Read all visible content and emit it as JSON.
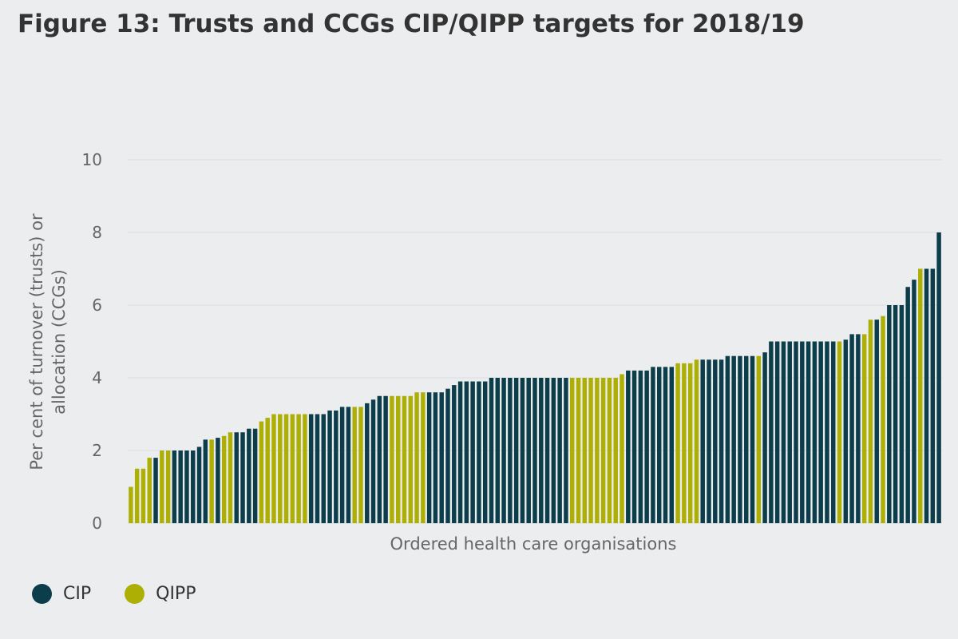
{
  "title": "Figure 13: Trusts and CCGs CIP/QIPP targets for 2018/19",
  "colors": {
    "CIP": "#0c3d4a",
    "QIPP": "#adaf05",
    "grid": "#dcdde0",
    "axis_text": "#666666",
    "background": "#ecedef"
  },
  "legend": [
    {
      "name": "CIP",
      "label": "CIP",
      "color": "#0c3d4a"
    },
    {
      "name": "QIPP",
      "label": "QIPP",
      "color": "#adaf05"
    }
  ],
  "chart_data": {
    "type": "bar",
    "title": "Figure 13: Trusts and CCGs CIP/QIPP targets for 2018/19",
    "xlabel": "Ordered health care organisations",
    "ylabel": "Per cent of turnover (trusts) or allocation (CCGs)",
    "ylim": [
      0,
      10
    ],
    "yticks": [
      0,
      2,
      4,
      6,
      8,
      10
    ],
    "grid": true,
    "legend_position": "bottom-left",
    "series_names": [
      "CIP",
      "QIPP"
    ],
    "bars": [
      [
        "QIPP",
        1.0
      ],
      [
        "QIPP",
        1.5
      ],
      [
        "QIPP",
        1.5
      ],
      [
        "QIPP",
        1.8
      ],
      [
        "CIP",
        1.8
      ],
      [
        "QIPP",
        2.0
      ],
      [
        "QIPP",
        2.0
      ],
      [
        "CIP",
        2.0
      ],
      [
        "CIP",
        2.0
      ],
      [
        "CIP",
        2.0
      ],
      [
        "CIP",
        2.0
      ],
      [
        "CIP",
        2.1
      ],
      [
        "CIP",
        2.3
      ],
      [
        "QIPP",
        2.3
      ],
      [
        "CIP",
        2.35
      ],
      [
        "QIPP",
        2.4
      ],
      [
        "QIPP",
        2.5
      ],
      [
        "CIP",
        2.5
      ],
      [
        "CIP",
        2.5
      ],
      [
        "CIP",
        2.6
      ],
      [
        "CIP",
        2.6
      ],
      [
        "QIPP",
        2.8
      ],
      [
        "QIPP",
        2.9
      ],
      [
        "QIPP",
        3.0
      ],
      [
        "QIPP",
        3.0
      ],
      [
        "QIPP",
        3.0
      ],
      [
        "QIPP",
        3.0
      ],
      [
        "QIPP",
        3.0
      ],
      [
        "QIPP",
        3.0
      ],
      [
        "CIP",
        3.0
      ],
      [
        "CIP",
        3.0
      ],
      [
        "CIP",
        3.0
      ],
      [
        "CIP",
        3.1
      ],
      [
        "CIP",
        3.1
      ],
      [
        "CIP",
        3.2
      ],
      [
        "CIP",
        3.2
      ],
      [
        "QIPP",
        3.2
      ],
      [
        "QIPP",
        3.2
      ],
      [
        "CIP",
        3.3
      ],
      [
        "CIP",
        3.4
      ],
      [
        "CIP",
        3.5
      ],
      [
        "CIP",
        3.5
      ],
      [
        "QIPP",
        3.5
      ],
      [
        "QIPP",
        3.5
      ],
      [
        "QIPP",
        3.5
      ],
      [
        "QIPP",
        3.5
      ],
      [
        "QIPP",
        3.6
      ],
      [
        "QIPP",
        3.6
      ],
      [
        "CIP",
        3.6
      ],
      [
        "CIP",
        3.6
      ],
      [
        "CIP",
        3.6
      ],
      [
        "CIP",
        3.7
      ],
      [
        "CIP",
        3.8
      ],
      [
        "CIP",
        3.9
      ],
      [
        "CIP",
        3.9
      ],
      [
        "CIP",
        3.9
      ],
      [
        "CIP",
        3.9
      ],
      [
        "CIP",
        3.9
      ],
      [
        "CIP",
        4.0
      ],
      [
        "CIP",
        4.0
      ],
      [
        "CIP",
        4.0
      ],
      [
        "CIP",
        4.0
      ],
      [
        "CIP",
        4.0
      ],
      [
        "CIP",
        4.0
      ],
      [
        "CIP",
        4.0
      ],
      [
        "CIP",
        4.0
      ],
      [
        "CIP",
        4.0
      ],
      [
        "CIP",
        4.0
      ],
      [
        "CIP",
        4.0
      ],
      [
        "CIP",
        4.0
      ],
      [
        "CIP",
        4.0
      ],
      [
        "QIPP",
        4.0
      ],
      [
        "QIPP",
        4.0
      ],
      [
        "QIPP",
        4.0
      ],
      [
        "QIPP",
        4.0
      ],
      [
        "QIPP",
        4.0
      ],
      [
        "QIPP",
        4.0
      ],
      [
        "QIPP",
        4.0
      ],
      [
        "QIPP",
        4.0
      ],
      [
        "QIPP",
        4.1
      ],
      [
        "CIP",
        4.2
      ],
      [
        "CIP",
        4.2
      ],
      [
        "CIP",
        4.2
      ],
      [
        "CIP",
        4.2
      ],
      [
        "CIP",
        4.3
      ],
      [
        "CIP",
        4.3
      ],
      [
        "CIP",
        4.3
      ],
      [
        "CIP",
        4.3
      ],
      [
        "QIPP",
        4.4
      ],
      [
        "QIPP",
        4.4
      ],
      [
        "QIPP",
        4.4
      ],
      [
        "QIPP",
        4.5
      ],
      [
        "CIP",
        4.5
      ],
      [
        "CIP",
        4.5
      ],
      [
        "CIP",
        4.5
      ],
      [
        "CIP",
        4.5
      ],
      [
        "CIP",
        4.6
      ],
      [
        "CIP",
        4.6
      ],
      [
        "CIP",
        4.6
      ],
      [
        "CIP",
        4.6
      ],
      [
        "CIP",
        4.6
      ],
      [
        "QIPP",
        4.6
      ],
      [
        "CIP",
        4.7
      ],
      [
        "CIP",
        5.0
      ],
      [
        "CIP",
        5.0
      ],
      [
        "CIP",
        5.0
      ],
      [
        "CIP",
        5.0
      ],
      [
        "CIP",
        5.0
      ],
      [
        "CIP",
        5.0
      ],
      [
        "CIP",
        5.0
      ],
      [
        "CIP",
        5.0
      ],
      [
        "CIP",
        5.0
      ],
      [
        "CIP",
        5.0
      ],
      [
        "CIP",
        5.0
      ],
      [
        "QIPP",
        5.0
      ],
      [
        "CIP",
        5.05
      ],
      [
        "CIP",
        5.2
      ],
      [
        "CIP",
        5.2
      ],
      [
        "QIPP",
        5.2
      ],
      [
        "QIPP",
        5.6
      ],
      [
        "CIP",
        5.6
      ],
      [
        "QIPP",
        5.7
      ],
      [
        "CIP",
        6.0
      ],
      [
        "CIP",
        6.0
      ],
      [
        "CIP",
        6.0
      ],
      [
        "CIP",
        6.5
      ],
      [
        "CIP",
        6.7
      ],
      [
        "QIPP",
        7.0
      ],
      [
        "CIP",
        7.0
      ],
      [
        "CIP",
        7.0
      ],
      [
        "CIP",
        8.0
      ]
    ]
  }
}
